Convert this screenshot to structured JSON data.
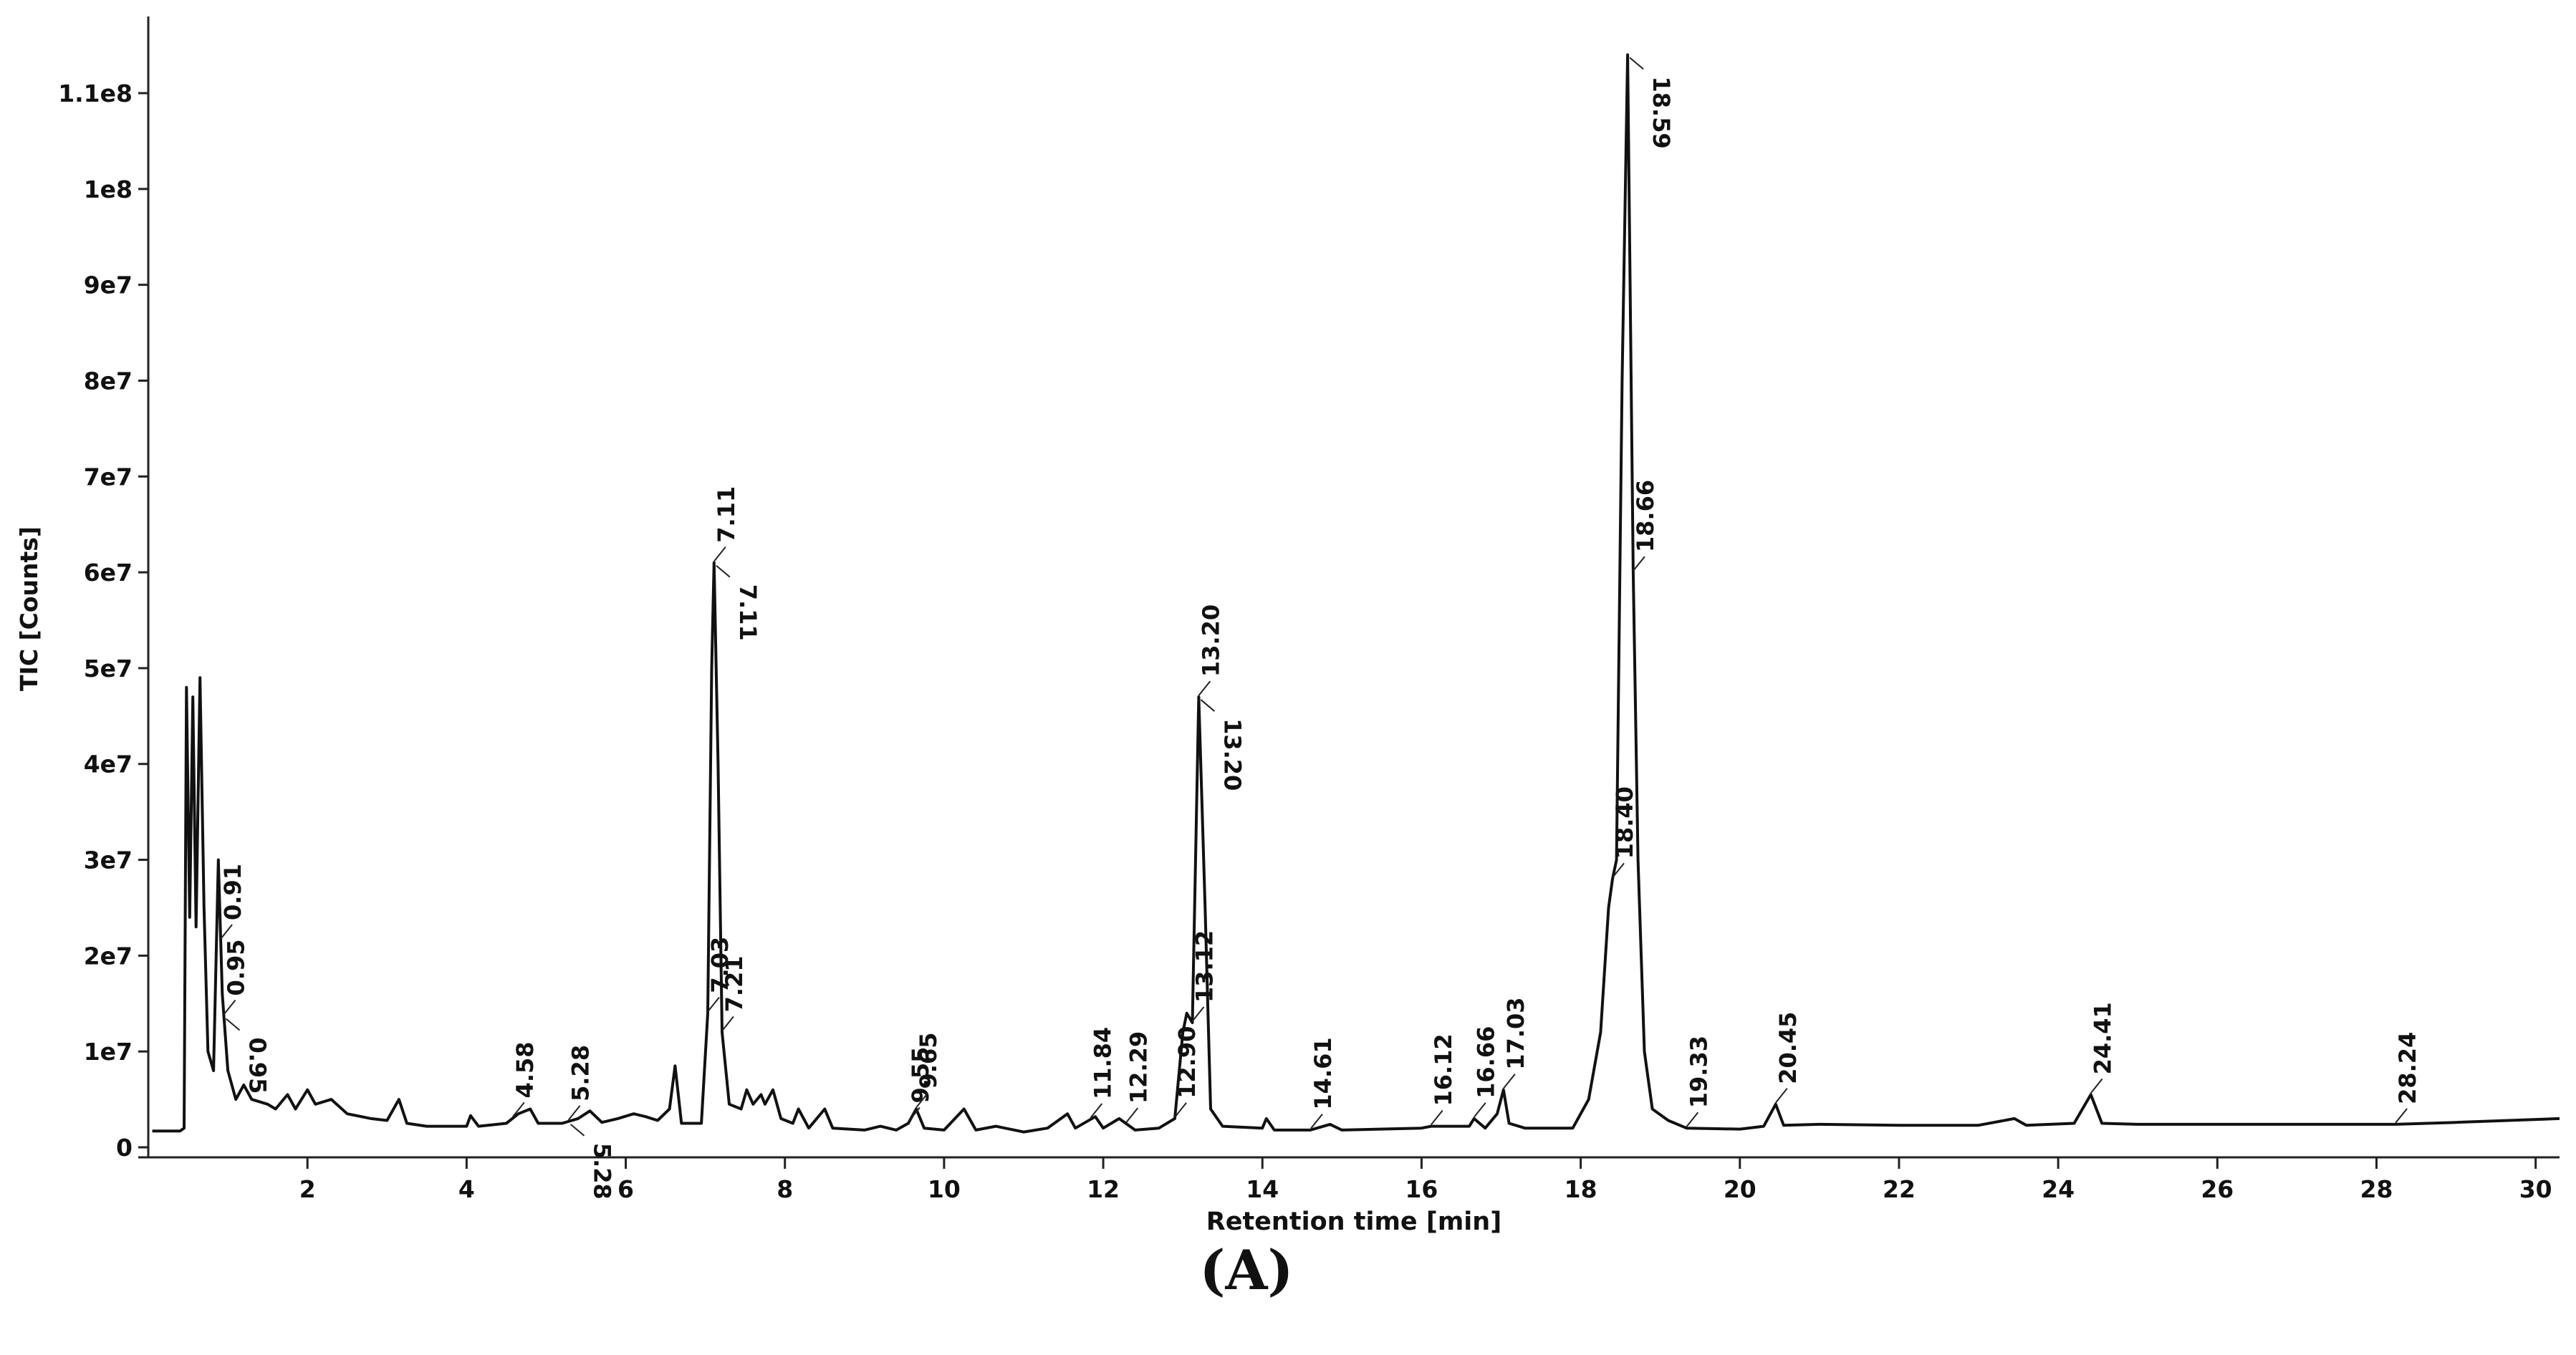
{
  "chart_data": {
    "type": "line",
    "title": "(A)",
    "x_label": "Retention time [min]",
    "y_label": "TIC [Counts]",
    "color": "#111111",
    "xlim": [
      0,
      30.3
    ],
    "ylim": [
      0,
      118000000.0
    ],
    "xticks": [
      2,
      4,
      6,
      8,
      10,
      12,
      14,
      16,
      18,
      20,
      22,
      24,
      26,
      28,
      30
    ],
    "yticks": [
      0,
      {
        "value": 10000000.0,
        "label": "1e7"
      },
      {
        "value": 20000000.0,
        "label": "2e7"
      },
      {
        "value": 30000000.0,
        "label": "3e7"
      },
      {
        "value": 40000000.0,
        "label": "4e7"
      },
      {
        "value": 50000000.0,
        "label": "5e7"
      },
      {
        "value": 60000000.0,
        "label": "6e7"
      },
      {
        "value": 70000000.0,
        "label": "7e7"
      },
      {
        "value": 80000000.0,
        "label": "8e7"
      },
      {
        "value": 90000000.0,
        "label": "9e7"
      },
      {
        "value": 100000000.0,
        "label": "1e8"
      },
      {
        "value": 110000000.0,
        "label": "1.1e8"
      }
    ],
    "x": [
      0.05,
      0.4,
      0.45,
      0.48,
      0.52,
      0.56,
      0.6,
      0.65,
      0.7,
      0.75,
      0.82,
      0.88,
      0.93,
      1.0,
      1.1,
      1.2,
      1.3,
      1.5,
      1.6,
      1.75,
      1.85,
      2.0,
      2.1,
      2.3,
      2.5,
      2.8,
      3.0,
      3.15,
      3.25,
      3.5,
      4.0,
      4.05,
      4.15,
      4.5,
      4.65,
      4.8,
      4.9,
      5.2,
      5.4,
      5.55,
      5.7,
      5.9,
      6.1,
      6.25,
      6.4,
      6.55,
      6.62,
      6.7,
      6.95,
      7.03,
      7.08,
      7.11,
      7.16,
      7.21,
      7.3,
      7.45,
      7.52,
      7.6,
      7.7,
      7.75,
      7.85,
      7.95,
      8.1,
      8.17,
      8.3,
      8.5,
      8.6,
      9.0,
      9.2,
      9.4,
      9.55,
      9.65,
      9.75,
      10.0,
      10.25,
      10.4,
      10.65,
      11.0,
      11.3,
      11.55,
      11.65,
      11.9,
      12.0,
      12.2,
      12.4,
      12.7,
      12.9,
      13.0,
      13.05,
      13.12,
      13.2,
      13.28,
      13.35,
      13.5,
      14.0,
      14.05,
      14.15,
      14.6,
      14.85,
      15,
      16,
      16.12,
      16.6,
      16.66,
      16.8,
      16.95,
      17.03,
      17.1,
      17.3,
      17.9,
      18.1,
      18.25,
      18.35,
      18.4,
      18.45,
      18.52,
      18.59,
      18.66,
      18.72,
      18.8,
      18.9,
      19.1,
      19.33,
      20.0,
      20.3,
      20.45,
      20.55,
      21,
      22,
      23,
      23.45,
      23.6,
      24.2,
      24.41,
      24.55,
      25,
      26,
      27,
      28.24,
      29,
      30.3
    ],
    "values": [
      1700000.0,
      1700000.0,
      2000000.0,
      48000000.0,
      24000000.0,
      47000000.0,
      23000000.0,
      49000000.0,
      25000000.0,
      10000000.0,
      8000000.0,
      30000000.0,
      16000000.0,
      8000000.0,
      5000000.0,
      6500000.0,
      5000000.0,
      4500000.0,
      4000000.0,
      5500000.0,
      4000000.0,
      6000000.0,
      4500000.0,
      5000000.0,
      3500000.0,
      3000000.0,
      2800000.0,
      5000000.0,
      2500000.0,
      2200000.0,
      2200000.0,
      3300000.0,
      2200000.0,
      2500000.0,
      3500000.0,
      4000000.0,
      2500000.0,
      2500000.0,
      3000000.0,
      3800000.0,
      2600000.0,
      3000000.0,
      3500000.0,
      3200000.0,
      2800000.0,
      4000000.0,
      8500000.0,
      2500000.0,
      2500000.0,
      14000000.0,
      50000000.0,
      61000000.0,
      40000000.0,
      12000000.0,
      4500000.0,
      4000000.0,
      6000000.0,
      4500000.0,
      5500000.0,
      4500000.0,
      6000000.0,
      3000000.0,
      2500000.0,
      4000000.0,
      2000000.0,
      4000000.0,
      2000000.0,
      1800000.0,
      2200000.0,
      1800000.0,
      2500000.0,
      4000000.0,
      2000000.0,
      1800000.0,
      4000000.0,
      1800000.0,
      2200000.0,
      1600000.0,
      2000000.0,
      3500000.0,
      2000000.0,
      3200000.0,
      2000000.0,
      3000000.0,
      1800000.0,
      2000000.0,
      3000000.0,
      12000000.0,
      14000000.0,
      13000000.0,
      47000000.0,
      25000000.0,
      4000000.0,
      2200000.0,
      2000000.0,
      3000000.0,
      1800000.0,
      1800000.0,
      2400000.0,
      1800000.0,
      2000000.0,
      2200000.0,
      2200000.0,
      3000000.0,
      2000000.0,
      3500000.0,
      6000000.0,
      2500000.0,
      2000000.0,
      2000000.0,
      5000000.0,
      12000000.0,
      25000000.0,
      28000000.0,
      30000000.0,
      80000000.0,
      114000000.0,
      60000000.0,
      30000000.0,
      10000000.0,
      4000000.0,
      2800000.0,
      2000000.0,
      1900000.0,
      2200000.0,
      4500000.0,
      2300000.0,
      2400000.0,
      2300000.0,
      2300000.0,
      3000000.0,
      2300000.0,
      2500000.0,
      5500000.0,
      2500000.0,
      2400000.0,
      2400000.0,
      2400000.0,
      2400000.0,
      2600000.0,
      3000000.0
    ],
    "annotations": [
      {
        "x": 0.91,
        "label": "0.91"
      },
      {
        "x": 0.95,
        "label": "0.95"
      },
      {
        "x": 0.95,
        "label": "0.95"
      },
      {
        "x": 4.58,
        "label": "4.58"
      },
      {
        "x": 5.28,
        "label": "5.28"
      },
      {
        "x": 5.28,
        "label": "5.28"
      },
      {
        "x": 7.03,
        "label": "7.03"
      },
      {
        "x": 7.11,
        "label": "7.11"
      },
      {
        "x": 7.11,
        "label": "7.11"
      },
      {
        "x": 7.21,
        "label": "7.21"
      },
      {
        "x": 9.55,
        "label": "9.55"
      },
      {
        "x": 9.65,
        "label": "9.65"
      },
      {
        "x": 11.84,
        "label": "11.84"
      },
      {
        "x": 12.29,
        "label": "12.29"
      },
      {
        "x": 12.9,
        "label": "12.90"
      },
      {
        "x": 13.12,
        "label": "13.12"
      },
      {
        "x": 13.2,
        "label": "13.20"
      },
      {
        "x": 13.2,
        "label": "13.20"
      },
      {
        "x": 14.61,
        "label": "14.61"
      },
      {
        "x": 16.12,
        "label": "16.12"
      },
      {
        "x": 16.66,
        "label": "16.66"
      },
      {
        "x": 17.03,
        "label": "17.03"
      },
      {
        "x": 18.4,
        "label": "18.40"
      },
      {
        "x": 18.59,
        "label": "18.59"
      },
      {
        "x": 18.66,
        "label": "18.66"
      },
      {
        "x": 19.33,
        "label": "19.33"
      },
      {
        "x": 20.45,
        "label": "20.45"
      },
      {
        "x": 24.41,
        "label": "24.41"
      },
      {
        "x": 28.24,
        "label": "28.24"
      }
    ]
  }
}
